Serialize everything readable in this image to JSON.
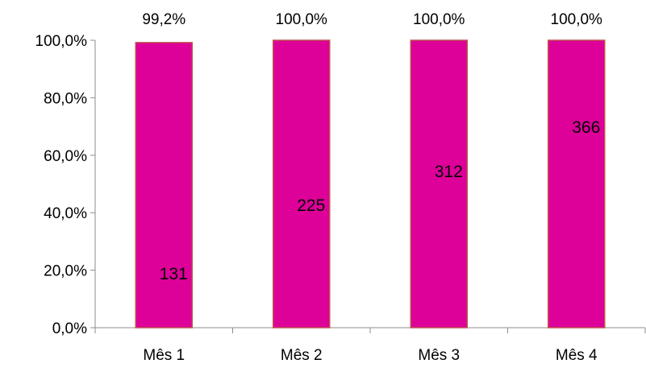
{
  "chart_data": {
    "type": "bar",
    "title": "",
    "xlabel": "",
    "ylabel": "",
    "categories": [
      "Mês 1",
      "Mês 2",
      "Mês 3",
      "Mês 4"
    ],
    "series": [
      {
        "values": [
          99.2,
          100.0,
          100.0,
          100.0
        ],
        "value_labels": [
          "99,2%",
          "100,0%",
          "100,0%",
          "100,0%"
        ],
        "inner_labels": [
          "131",
          "225",
          "312",
          "366"
        ]
      }
    ],
    "ylim": [
      0,
      100
    ],
    "yticks": [
      {
        "value": 0,
        "label": "0,0%"
      },
      {
        "value": 20,
        "label": "20,0%"
      },
      {
        "value": 40,
        "label": "40,0%"
      },
      {
        "value": 60,
        "label": "60,0%"
      },
      {
        "value": 80,
        "label": "80,0%"
      },
      {
        "value": 100,
        "label": "100,0%"
      }
    ],
    "grid": false,
    "legend": "none",
    "colors": {
      "bar_fill": "#dd0099",
      "bar_stroke": "#c0504d",
      "axis": "#8c8c8c",
      "text": "#000000"
    }
  }
}
